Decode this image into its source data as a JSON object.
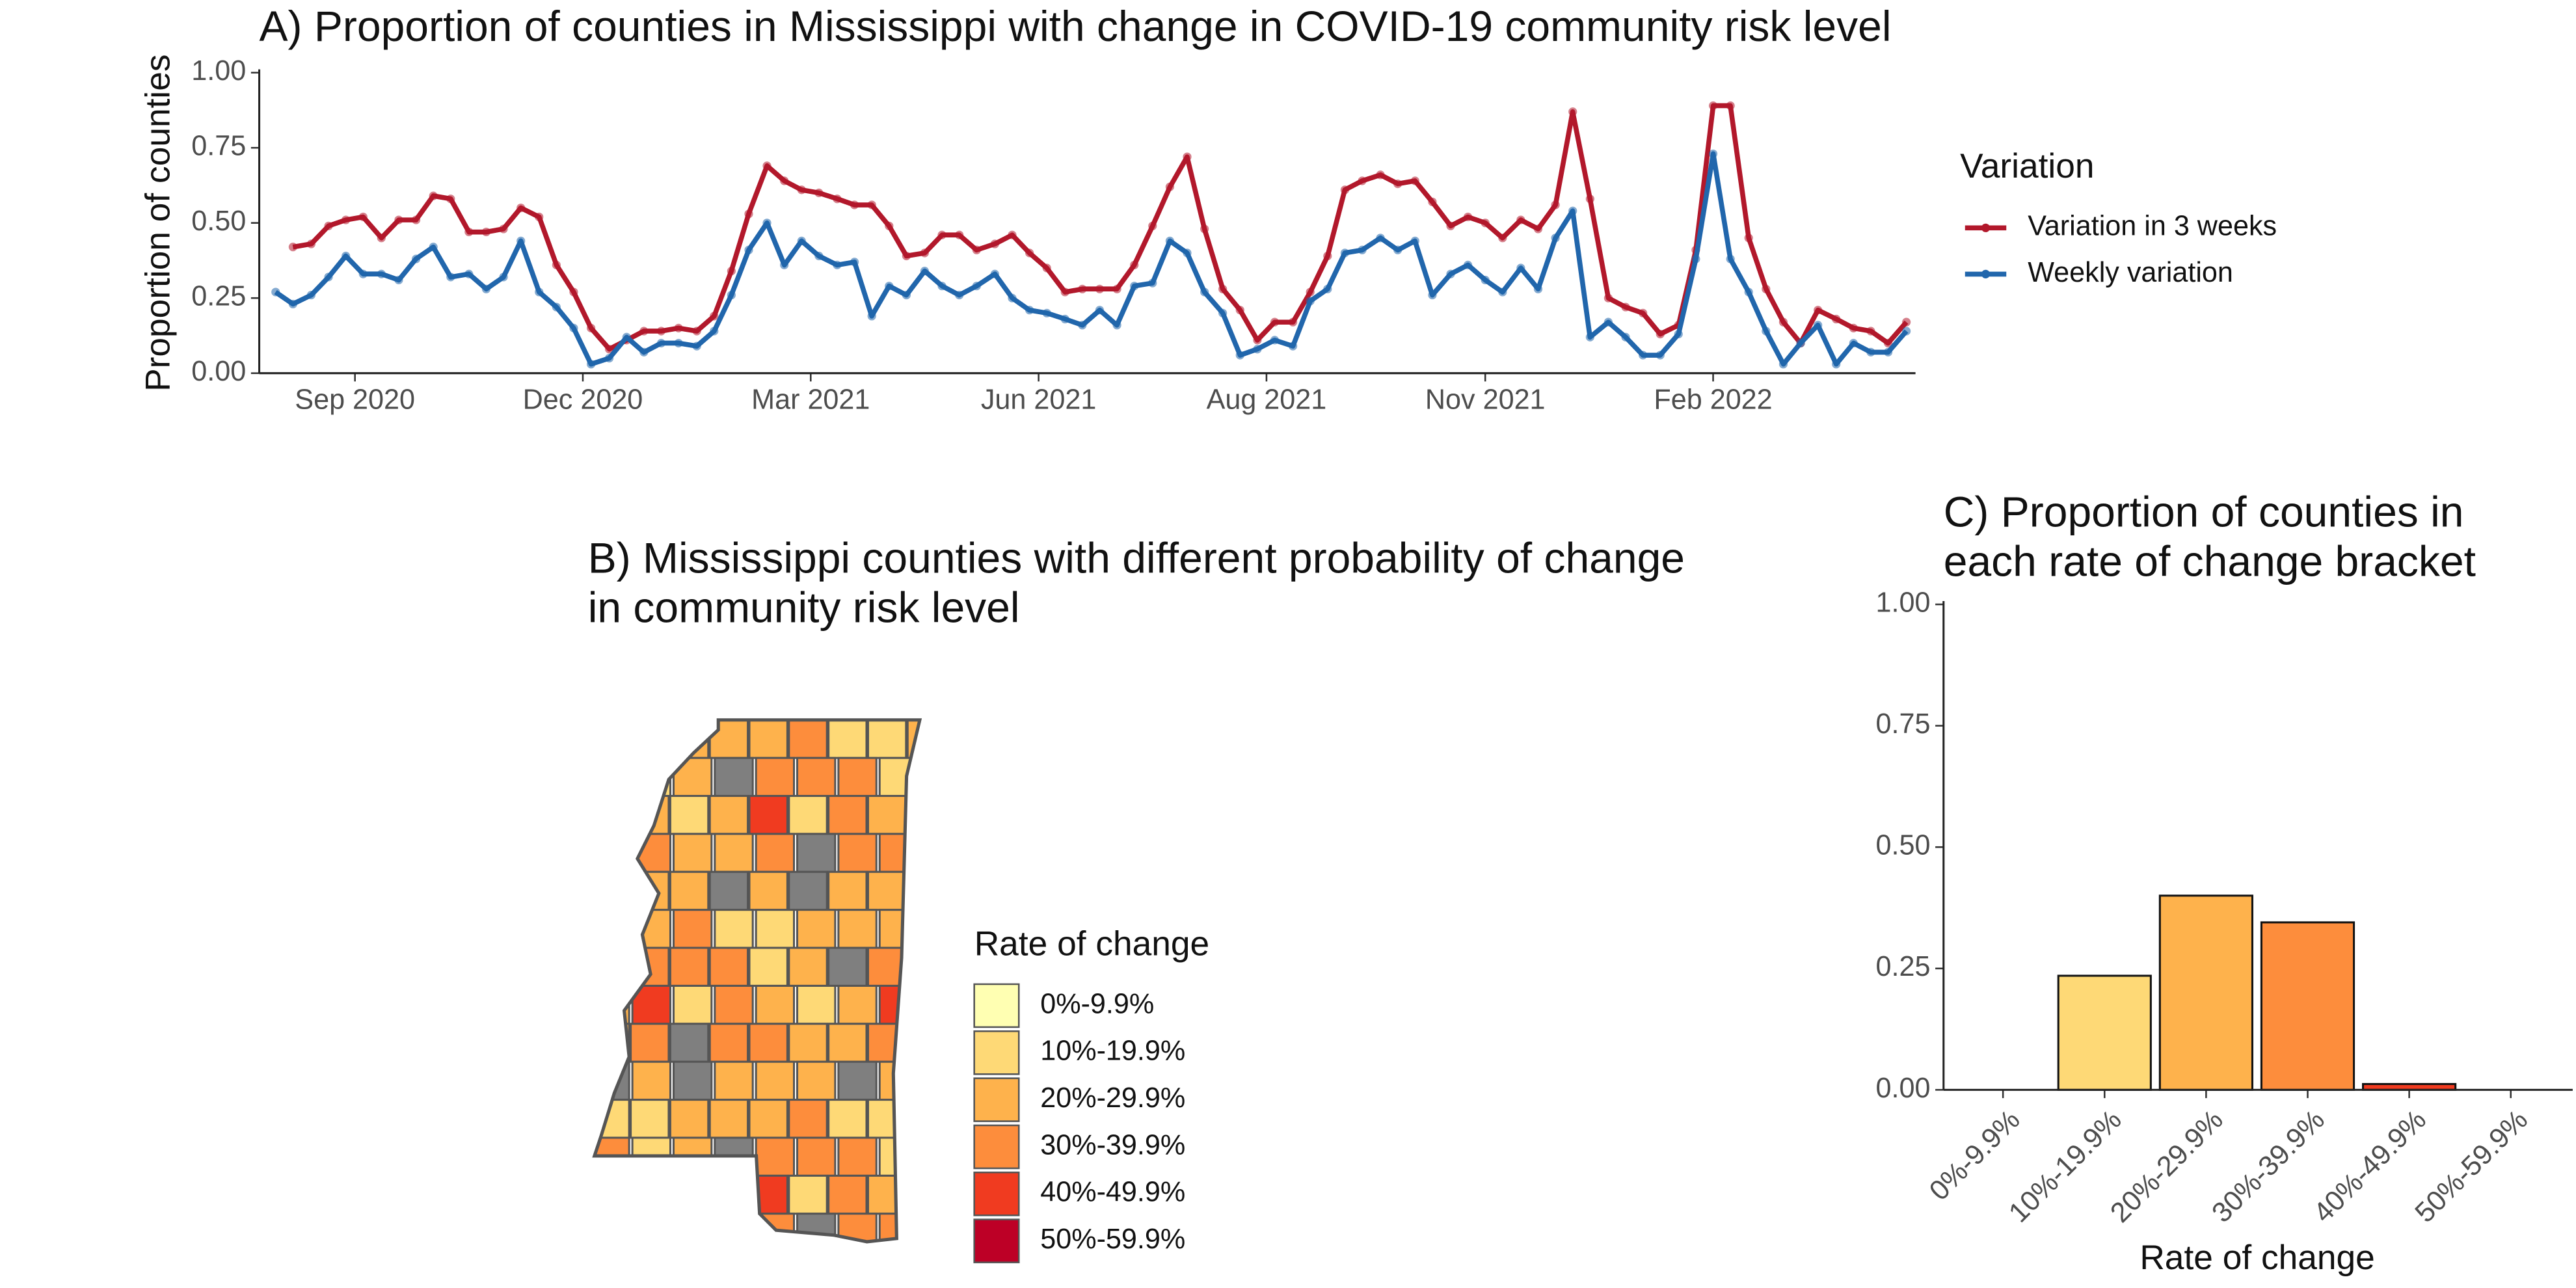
{
  "chart_data": [
    {
      "type": "line",
      "title": "A) Proportion of counties in Mississippi with change in COVID-19 community risk level",
      "y_label": "Proportion of counties",
      "legend_title": "Variation",
      "x": [
        2020.583,
        2020.602,
        2020.622,
        2020.641,
        2020.66,
        2020.679,
        2020.699,
        2020.718,
        2020.737,
        2020.756,
        2020.775,
        2020.795,
        2020.814,
        2020.833,
        2020.852,
        2020.872,
        2020.891,
        2020.91,
        2020.929,
        2020.949,
        2020.968,
        2020.987,
        2021.006,
        2021.025,
        2021.045,
        2021.064,
        2021.083,
        2021.102,
        2021.122,
        2021.141,
        2021.16,
        2021.179,
        2021.199,
        2021.218,
        2021.237,
        2021.256,
        2021.275,
        2021.295,
        2021.314,
        2021.333,
        2021.352,
        2021.372,
        2021.391,
        2021.41,
        2021.429,
        2021.449,
        2021.468,
        2021.487,
        2021.506,
        2021.525,
        2021.545,
        2021.564,
        2021.583,
        2021.602,
        2021.622,
        2021.641,
        2021.66,
        2021.679,
        2021.699,
        2021.718,
        2021.737,
        2021.756,
        2021.775,
        2021.795,
        2021.814,
        2021.833,
        2021.852,
        2021.872,
        2021.891,
        2021.91,
        2021.929,
        2021.949,
        2021.968,
        2021.987,
        2022.006,
        2022.025,
        2022.045,
        2022.064,
        2022.083,
        2022.102,
        2022.122,
        2022.141,
        2022.16,
        2022.179,
        2022.199,
        2022.218,
        2022.237,
        2022.256,
        2022.275,
        2022.295,
        2022.314,
        2022.333,
        2022.352,
        2022.372
      ],
      "series": [
        {
          "name": "Variation in 3 weeks",
          "color": "#b2182b",
          "values": [
            null,
            0.42,
            0.43,
            0.49,
            0.51,
            0.52,
            0.45,
            0.51,
            0.51,
            0.59,
            0.58,
            0.47,
            0.47,
            0.48,
            0.55,
            0.52,
            0.36,
            0.27,
            0.15,
            0.08,
            0.11,
            0.14,
            0.14,
            0.15,
            0.14,
            0.19,
            0.34,
            0.53,
            0.69,
            0.64,
            0.61,
            0.6,
            0.58,
            0.56,
            0.56,
            0.49,
            0.39,
            0.4,
            0.46,
            0.46,
            0.41,
            0.43,
            0.46,
            0.4,
            0.35,
            0.27,
            0.28,
            0.28,
            0.28,
            0.36,
            0.49,
            0.62,
            0.72,
            0.48,
            0.28,
            0.21,
            0.11,
            0.17,
            0.17,
            0.27,
            0.39,
            0.61,
            0.64,
            0.66,
            0.63,
            0.64,
            0.57,
            0.49,
            0.52,
            0.5,
            0.45,
            0.51,
            0.48,
            0.56,
            0.87,
            0.58,
            0.25,
            0.22,
            0.2,
            0.13,
            0.16,
            0.41,
            0.89,
            0.89,
            0.45,
            0.28,
            0.17,
            0.1,
            0.21,
            0.18,
            0.15,
            0.14,
            0.1,
            0.17
          ]
        },
        {
          "name": "Weekly variation",
          "color": "#2166ac",
          "values": [
            0.27,
            0.23,
            0.26,
            0.32,
            0.39,
            0.33,
            0.33,
            0.31,
            0.38,
            0.42,
            0.32,
            0.33,
            0.28,
            0.32,
            0.44,
            0.27,
            0.22,
            0.15,
            0.03,
            0.05,
            0.12,
            0.07,
            0.1,
            0.1,
            0.09,
            0.14,
            0.26,
            0.41,
            0.5,
            0.36,
            0.44,
            0.39,
            0.36,
            0.37,
            0.19,
            0.29,
            0.26,
            0.34,
            0.29,
            0.26,
            0.29,
            0.33,
            0.25,
            0.21,
            0.2,
            0.18,
            0.16,
            0.21,
            0.16,
            0.29,
            0.3,
            0.44,
            0.4,
            0.27,
            0.2,
            0.06,
            0.08,
            0.11,
            0.09,
            0.24,
            0.28,
            0.4,
            0.41,
            0.45,
            0.41,
            0.44,
            0.26,
            0.33,
            0.36,
            0.31,
            0.27,
            0.35,
            0.28,
            0.45,
            0.54,
            0.12,
            0.17,
            0.12,
            0.06,
            0.06,
            0.13,
            0.38,
            0.73,
            0.38,
            0.27,
            0.14,
            0.03,
            0.1,
            0.16,
            0.03,
            0.1,
            0.07,
            0.07,
            0.14
          ]
        }
      ],
      "xlim": [
        2020.565,
        2022.382
      ],
      "xticks": [
        {
          "value": 2020.67,
          "label": "Sep 2020"
        },
        {
          "value": 2020.92,
          "label": "Dec 2020"
        },
        {
          "value": 2021.17,
          "label": "Mar 2021"
        },
        {
          "value": 2021.42,
          "label": "Jun 2021"
        },
        {
          "value": 2021.67,
          "label": "Aug 2021"
        },
        {
          "value": 2021.91,
          "label": "Nov 2021"
        },
        {
          "value": 2022.16,
          "label": "Feb 2022"
        }
      ],
      "ylim": [
        0,
        1
      ],
      "yticks": [
        {
          "value": 0,
          "label": "0.00"
        },
        {
          "value": 0.25,
          "label": "0.25"
        },
        {
          "value": 0.5,
          "label": "0.50"
        },
        {
          "value": 0.75,
          "label": "0.75"
        },
        {
          "value": 1,
          "label": "1.00"
        }
      ]
    },
    {
      "type": "map",
      "title": [
        " B)  Mississippi counties with different probability of change",
        "in community risk level"
      ],
      "legend_title": "Rate of change",
      "categories": [
        "0%-9.9%",
        "10%-19.9%",
        "20%-29.9%",
        "30%-39.9%",
        "40%-49.9%",
        "50%-59.9%"
      ],
      "colors": [
        "#ffffb2",
        "#fed976",
        "#feb24c",
        "#fd8d3c",
        "#f03b20",
        "#bd0026"
      ],
      "missing_color": "#7f7f7f"
    },
    {
      "type": "bar",
      "title": [
        "C) Proportion of counties in",
        " each rate of change bracket"
      ],
      "x_label": "Rate of change",
      "categories": [
        "0%-9.9%",
        "10%-19.9%",
        "20%-29.9%",
        "30%-39.9%",
        "40%-49.9%",
        "50%-59.9%"
      ],
      "values": [
        0,
        0.235,
        0.4,
        0.345,
        0.012,
        0
      ],
      "colors": [
        "#ffffb2",
        "#fed976",
        "#feb24c",
        "#fd8d3c",
        "#f03b20",
        "#bd0026"
      ],
      "ylim": [
        0,
        1
      ],
      "yticks": [
        {
          "value": 0,
          "label": "0.00"
        },
        {
          "value": 0.25,
          "label": "0.25"
        },
        {
          "value": 0.5,
          "label": "0.50"
        },
        {
          "value": 0.75,
          "label": "0.75"
        },
        {
          "value": 1,
          "label": "1.00"
        }
      ]
    }
  ]
}
